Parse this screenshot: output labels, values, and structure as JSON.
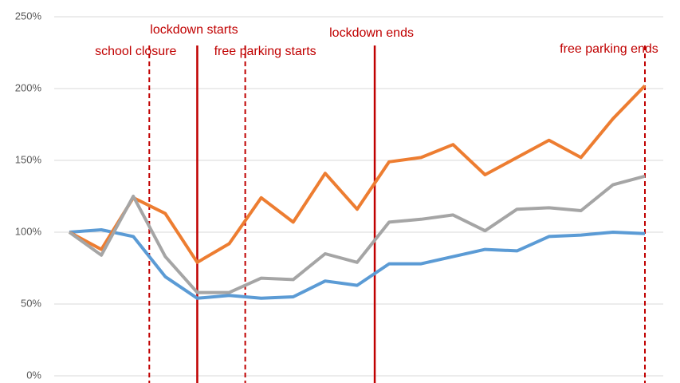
{
  "chart_data": {
    "type": "line",
    "categories": [
      null,
      null,
      null,
      null,
      null,
      null,
      null,
      null,
      null,
      null,
      null,
      null,
      null,
      null,
      null,
      null,
      null,
      null,
      null
    ],
    "series": [
      {
        "color": "#5b9bd5",
        "values": [
          100,
          101.7,
          97,
          69,
          54,
          56,
          54,
          55,
          66,
          63,
          78,
          78,
          83,
          88,
          87,
          97,
          98,
          100,
          99
        ]
      },
      {
        "color": "#ed7d31",
        "values": [
          100,
          88,
          124,
          113,
          79,
          92,
          124,
          107,
          141,
          116,
          149,
          152,
          161,
          140,
          152,
          164,
          152,
          179,
          202
        ]
      },
      {
        "color": "#a5a5a5",
        "values": [
          100,
          84,
          125,
          83,
          58,
          58,
          68,
          67,
          85,
          79,
          107,
          109,
          112,
          101,
          116,
          117,
          115,
          133,
          139
        ]
      }
    ],
    "ylim": [
      0,
      250
    ],
    "yticks": [
      {
        "value": 0,
        "label": "0%"
      },
      {
        "value": 50,
        "label": "50%"
      },
      {
        "value": 100,
        "label": "100%"
      },
      {
        "value": 150,
        "label": "150%"
      },
      {
        "value": 200,
        "label": "200%"
      },
      {
        "value": 250,
        "label": "250%"
      }
    ],
    "grid": true,
    "annotations": [
      {
        "label": "school closure",
        "x": 2.5,
        "style": "dashed",
        "color": "#c00000"
      },
      {
        "label": "lockdown starts",
        "x": 4,
        "style": "solid",
        "color": "#c00000"
      },
      {
        "label": "free parking starts",
        "x": 5.5,
        "style": "dashed",
        "color": "#c00000"
      },
      {
        "label": "lockdown ends",
        "x": 9.55,
        "style": "solid",
        "color": "#c00000"
      },
      {
        "label": "free parking ends",
        "x": 18,
        "style": "dashed",
        "color": "#c00000"
      }
    ]
  }
}
